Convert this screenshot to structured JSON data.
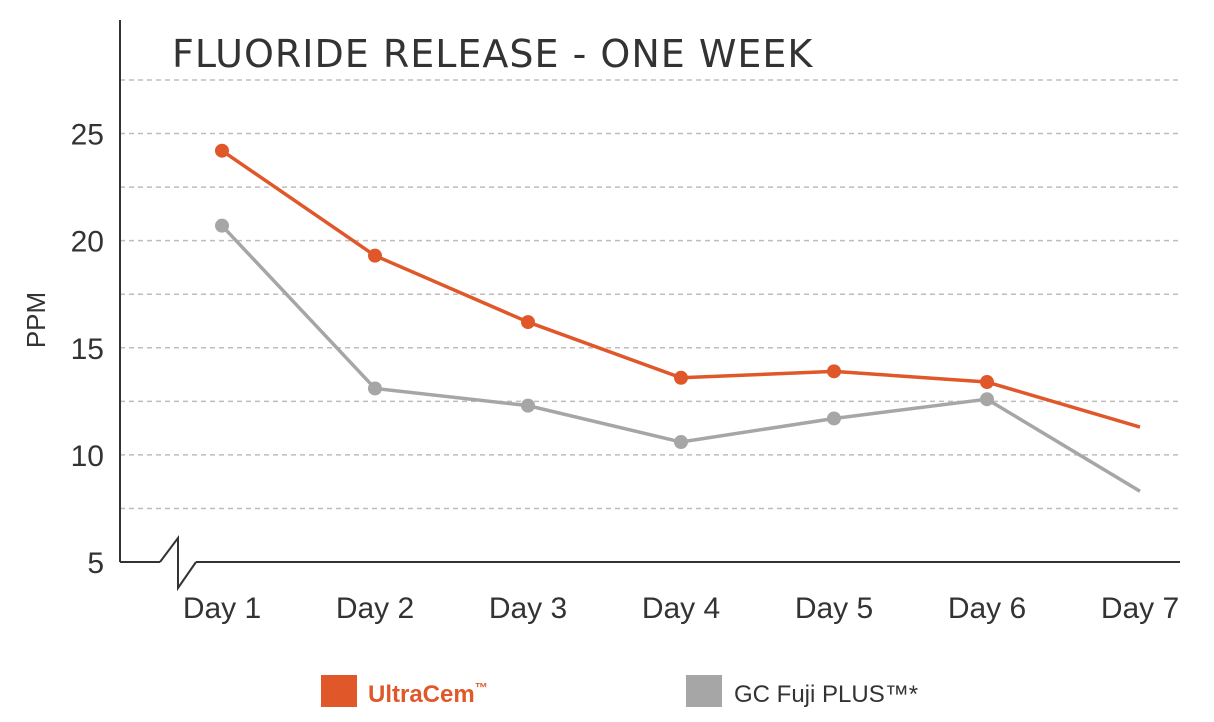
{
  "chart_data": {
    "type": "line",
    "title": "FLUORIDE RELEASE - ONE WEEK",
    "ylabel": "PPM",
    "xlabel": "",
    "categories": [
      "Day 1",
      "Day 2",
      "Day 3",
      "Day 4",
      "Day 5",
      "Day 6",
      "Day 7"
    ],
    "y_ticks": [
      "5",
      "10",
      "15",
      "20",
      "25"
    ],
    "ylim": [
      5,
      27.5
    ],
    "grid": true,
    "legend_position": "bottom",
    "series": [
      {
        "name": "UltraCem",
        "name_mark": "™",
        "color": "#e0582a",
        "values": [
          24.2,
          19.3,
          16.2,
          13.6,
          13.9,
          13.4,
          11.3
        ]
      },
      {
        "name": "GC Fuji PLUS™*",
        "name_mark": "",
        "color": "#a6a6a6",
        "values": [
          20.7,
          13.1,
          12.3,
          10.6,
          11.7,
          12.6,
          8.3
        ]
      }
    ]
  }
}
